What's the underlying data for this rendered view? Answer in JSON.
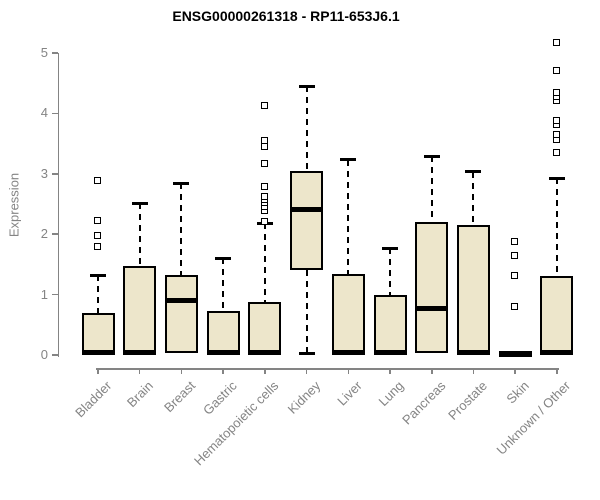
{
  "chart_data": {
    "type": "box",
    "title": "ENSG00000261318 - RP11-653J6.1",
    "ylabel": "Expression",
    "xlabel": "",
    "ylim": [
      0,
      5
    ],
    "yticks": [
      "0",
      "1",
      "2",
      "3",
      "4",
      "5"
    ],
    "grid": false,
    "legend": null,
    "categories": [
      "Bladder",
      "Brain",
      "Breast",
      "Gastric",
      "Hematopoietic cells",
      "Kidney",
      "Liver",
      "Lung",
      "Pancreas",
      "Prostate",
      "Skin",
      "Unknown / Other"
    ],
    "boxes": [
      {
        "category": "Bladder",
        "whisker_low": 0.0,
        "q1": 0.01,
        "median": 0.04,
        "q3": 0.7,
        "whisker_high": 1.32,
        "outliers": [
          1.79,
          1.97,
          2.22,
          2.88
        ]
      },
      {
        "category": "Brain",
        "whisker_low": 0.0,
        "q1": 0.01,
        "median": 0.04,
        "q3": 1.47,
        "whisker_high": 2.51,
        "outliers": []
      },
      {
        "category": "Breast",
        "whisker_low": 0.0,
        "q1": 0.03,
        "median": 0.9,
        "q3": 1.33,
        "whisker_high": 2.84,
        "outliers": []
      },
      {
        "category": "Gastric",
        "whisker_low": 0.0,
        "q1": 0.01,
        "median": 0.04,
        "q3": 0.73,
        "whisker_high": 1.6,
        "outliers": []
      },
      {
        "category": "Hematopoietic cells",
        "whisker_low": 0.0,
        "q1": 0.01,
        "median": 0.04,
        "q3": 0.88,
        "whisker_high": 2.18,
        "outliers": [
          2.21,
          2.38,
          2.45,
          2.51,
          2.56,
          2.62,
          2.78,
          3.16,
          3.45,
          3.54,
          4.12
        ]
      },
      {
        "category": "Kidney",
        "whisker_low": 0.02,
        "q1": 1.4,
        "median": 2.41,
        "q3": 3.05,
        "whisker_high": 4.45,
        "outliers": []
      },
      {
        "category": "Liver",
        "whisker_low": 0.0,
        "q1": 0.01,
        "median": 0.04,
        "q3": 1.34,
        "whisker_high": 3.23,
        "outliers": []
      },
      {
        "category": "Lung",
        "whisker_low": 0.0,
        "q1": 0.01,
        "median": 0.04,
        "q3": 0.99,
        "whisker_high": 1.77,
        "outliers": []
      },
      {
        "category": "Pancreas",
        "whisker_low": 0.0,
        "q1": 0.03,
        "median": 0.77,
        "q3": 2.21,
        "whisker_high": 3.29,
        "outliers": []
      },
      {
        "category": "Prostate",
        "whisker_low": 0.0,
        "q1": 0.01,
        "median": 0.04,
        "q3": 2.15,
        "whisker_high": 3.03,
        "outliers": []
      },
      {
        "category": "Skin",
        "whisker_low": 0.0,
        "q1": 0.0,
        "median": 0.02,
        "q3": 0.03,
        "whisker_high": 0.03,
        "outliers": [
          0.79,
          1.3,
          1.64,
          1.87
        ]
      },
      {
        "category": "Unknown / Other",
        "whisker_low": 0.0,
        "q1": 0.01,
        "median": 0.04,
        "q3": 1.3,
        "whisker_high": 2.93,
        "outliers": [
          3.35,
          3.56,
          3.64,
          3.8,
          3.88,
          4.2,
          4.27,
          4.33,
          4.71,
          5.17
        ]
      }
    ],
    "colors": {
      "box_fill": "#EDE6CB",
      "box_border": "#000000",
      "axis": "#848484",
      "title_text": "#000000"
    }
  }
}
